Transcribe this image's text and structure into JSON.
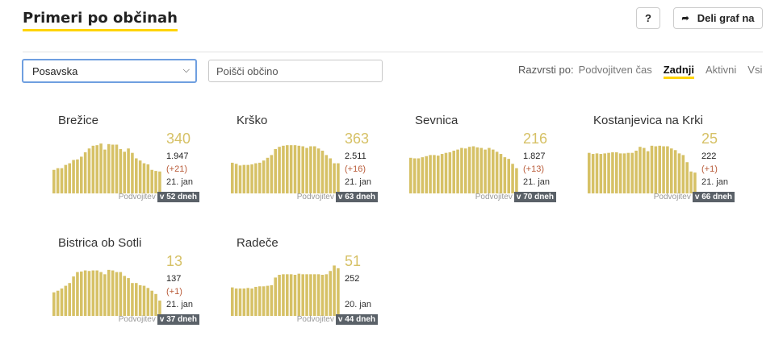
{
  "header": {
    "title": "Primeri po občinah",
    "help_label": "?",
    "share_label": "Deli graf na"
  },
  "controls": {
    "region_value": "Posavska",
    "search_placeholder": "Poišči občino",
    "sort_label": "Razvrsti po:",
    "sort_options": [
      "Podvojitven čas",
      "Zadnji",
      "Aktivni",
      "Vsi"
    ],
    "sort_active": 1
  },
  "colors": {
    "bar": "#d6c166",
    "accent_underline": "#ffd400",
    "badge_bg": "#5a6168",
    "delta": "#b95c3a"
  },
  "cards": [
    {
      "name": "Brežice",
      "last": "340",
      "total": "1.947",
      "delta": "(+21)",
      "date": "21. jan",
      "dbl_label": "Podvojitev",
      "dbl_value": "v 52 dneh",
      "bars": [
        0.43,
        0.46,
        0.46,
        0.52,
        0.55,
        0.61,
        0.62,
        0.67,
        0.75,
        0.82,
        0.87,
        0.88,
        0.91,
        0.8,
        0.9,
        0.89,
        0.89,
        0.81,
        0.76,
        0.82,
        0.74,
        0.64,
        0.6,
        0.55,
        0.53,
        0.43,
        0.41,
        0.4
      ]
    },
    {
      "name": "Krško",
      "last": "363",
      "total": "2.511",
      "delta": "(+16)",
      "date": "21. jan",
      "dbl_label": "Podvojitev",
      "dbl_value": "v 63 dneh",
      "bars": [
        0.56,
        0.54,
        0.51,
        0.52,
        0.52,
        0.53,
        0.55,
        0.56,
        0.6,
        0.65,
        0.7,
        0.81,
        0.85,
        0.87,
        0.88,
        0.88,
        0.88,
        0.87,
        0.86,
        0.83,
        0.86,
        0.86,
        0.82,
        0.78,
        0.7,
        0.64,
        0.55,
        0.55
      ]
    },
    {
      "name": "Sevnica",
      "last": "216",
      "total": "1.827",
      "delta": "(+13)",
      "date": "21. jan",
      "dbl_label": "Podvojitev",
      "dbl_value": "v 70 dneh",
      "bars": [
        0.65,
        0.64,
        0.64,
        0.66,
        0.68,
        0.7,
        0.7,
        0.69,
        0.72,
        0.74,
        0.75,
        0.78,
        0.8,
        0.83,
        0.82,
        0.85,
        0.86,
        0.84,
        0.83,
        0.8,
        0.83,
        0.8,
        0.76,
        0.72,
        0.66,
        0.63,
        0.54,
        0.46
      ]
    },
    {
      "name": "Kostanjevica na Krki",
      "last": "25",
      "total": "222",
      "delta": "(+1)",
      "date": "21. jan",
      "dbl_label": "Podvojitev",
      "dbl_value": "v 66 dneh",
      "bars": [
        0.74,
        0.72,
        0.73,
        0.72,
        0.73,
        0.74,
        0.75,
        0.75,
        0.73,
        0.73,
        0.74,
        0.74,
        0.78,
        0.85,
        0.83,
        0.77,
        0.87,
        0.86,
        0.87,
        0.86,
        0.86,
        0.82,
        0.79,
        0.73,
        0.7,
        0.57,
        0.4,
        0.38
      ]
    },
    {
      "name": "Bistrica ob Sotli",
      "last": "13",
      "total": "137",
      "delta": "(+1)",
      "date": "21. jan",
      "dbl_label": "Podvojitev",
      "dbl_value": "v 37 dneh",
      "bars": [
        0.43,
        0.46,
        0.5,
        0.55,
        0.6,
        0.72,
        0.8,
        0.81,
        0.83,
        0.82,
        0.83,
        0.83,
        0.8,
        0.76,
        0.84,
        0.83,
        0.8,
        0.8,
        0.73,
        0.69,
        0.6,
        0.6,
        0.56,
        0.55,
        0.51,
        0.46,
        0.4,
        0.28
      ]
    },
    {
      "name": "Radeče",
      "last": "51",
      "total": "252",
      "date": "20. jan",
      "dbl_label": "Podvojitev",
      "dbl_value": "v 44 dneh",
      "bars": [
        0.52,
        0.5,
        0.5,
        0.5,
        0.51,
        0.5,
        0.53,
        0.54,
        0.54,
        0.55,
        0.56,
        0.7,
        0.75,
        0.76,
        0.76,
        0.76,
        0.75,
        0.77,
        0.76,
        0.76,
        0.76,
        0.76,
        0.76,
        0.75,
        0.76,
        0.82,
        0.92,
        0.87
      ]
    }
  ]
}
